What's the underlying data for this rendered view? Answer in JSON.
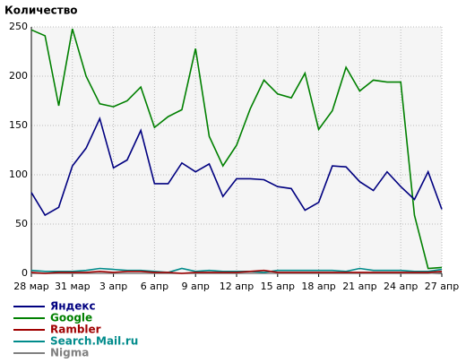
{
  "chart_data": {
    "type": "line",
    "title": "Количество",
    "categories": [
      "28 мар",
      null,
      null,
      "31 мар",
      null,
      null,
      "3 апр",
      null,
      null,
      "6 апр",
      null,
      null,
      "9 апр",
      null,
      null,
      "12 апр",
      null,
      null,
      "15 апр",
      null,
      null,
      "18 апр",
      null,
      null,
      "21 апр",
      null,
      null,
      "24 апр",
      null,
      null,
      "27 апр"
    ],
    "ylim": [
      0,
      250
    ],
    "yticks": [
      0,
      50,
      100,
      150,
      200,
      250
    ],
    "grid": true,
    "series": [
      {
        "name": "Яндекс",
        "color": "#000080",
        "values": [
          82,
          59,
          67,
          109,
          127,
          157,
          107,
          115,
          145,
          91,
          91,
          112,
          103,
          111,
          78,
          96,
          96,
          95,
          88,
          86,
          64,
          72,
          109,
          108,
          93,
          84,
          103,
          88,
          75,
          103,
          65
        ]
      },
      {
        "name": "Google",
        "color": "#008000",
        "values": [
          247,
          241,
          170,
          248,
          200,
          172,
          169,
          175,
          189,
          148,
          159,
          166,
          228,
          139,
          109,
          130,
          167,
          196,
          182,
          178,
          203,
          146,
          165,
          209,
          185,
          196,
          194,
          194,
          59,
          5,
          6
        ]
      },
      {
        "name": "Rambler",
        "color": "#a00000",
        "values": [
          1,
          0,
          1,
          1,
          1,
          2,
          1,
          2,
          2,
          1,
          1,
          0,
          1,
          1,
          1,
          1,
          2,
          3,
          1,
          1,
          1,
          1,
          1,
          1,
          1,
          1,
          1,
          1,
          1,
          1,
          2
        ]
      },
      {
        "name": "Search.Mail.ru",
        "color": "#008b8b",
        "values": [
          3,
          2,
          2,
          2,
          3,
          5,
          4,
          3,
          3,
          2,
          1,
          5,
          2,
          3,
          2,
          2,
          2,
          1,
          3,
          3,
          3,
          3,
          3,
          2,
          5,
          3,
          3,
          3,
          2,
          2,
          4
        ]
      },
      {
        "name": "Nigma",
        "color": "#808080",
        "values": [
          0,
          0,
          0,
          0,
          0,
          0,
          0,
          0,
          0,
          0,
          0,
          0,
          0,
          0,
          0,
          0,
          0,
          0,
          0,
          0,
          0,
          0,
          0,
          0,
          0,
          0,
          0,
          0,
          0,
          0,
          1
        ]
      }
    ]
  }
}
